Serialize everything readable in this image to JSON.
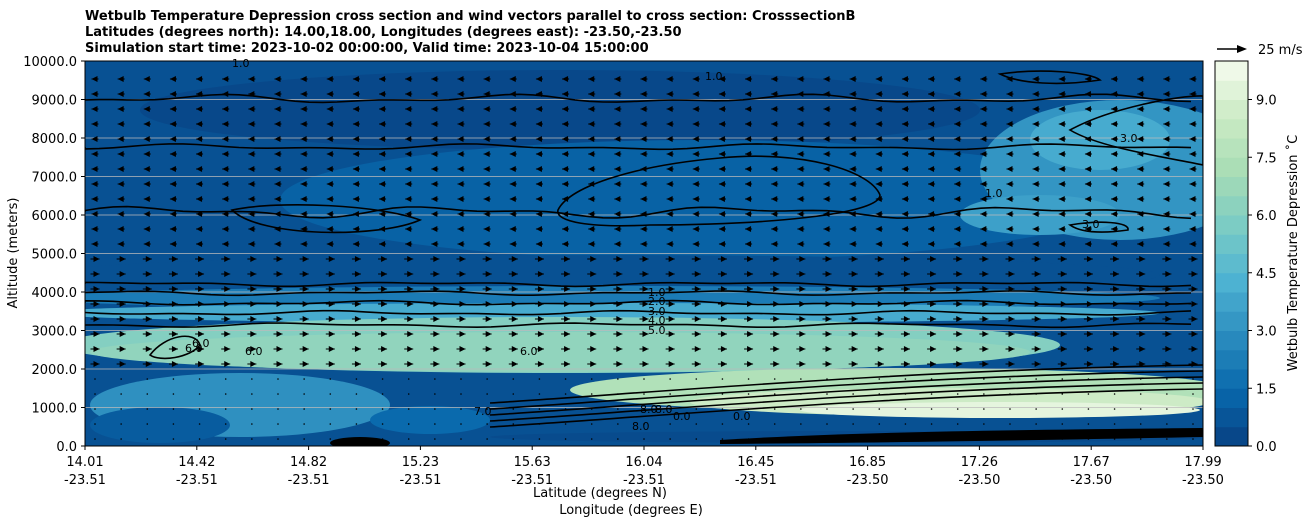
{
  "chart_data": {
    "type": "heatmap",
    "title_lines": [
      "Wetbulb Temperature Depression cross section and wind vectors parallel to cross section: CrosssectionB",
      "Latitudes (degrees north): 14.00,18.00, Longitudes (degrees east): -23.50,-23.50",
      "Simulation start time: 2023-10-02 00:00:00, Valid time: 2023-10-04 15:00:00"
    ],
    "xlabel_lines": [
      "Latitude (degrees N)",
      "Longitude (degrees E)"
    ],
    "ylabel": "Altitude (meters)",
    "colorbar_label": "Wetbulb Temperature Depression ˚C",
    "quiver_key_label": "25 m/s",
    "ylim": [
      0,
      10000
    ],
    "yticks": [
      "0.0",
      "1000.0",
      "2000.0",
      "3000.0",
      "4000.0",
      "5000.0",
      "6000.0",
      "7000.0",
      "8000.0",
      "9000.0",
      "10000.0"
    ],
    "xticks_lat": [
      "14.01",
      "14.42",
      "14.82",
      "15.23",
      "15.63",
      "16.04",
      "16.45",
      "16.85",
      "17.26",
      "17.67",
      "17.99"
    ],
    "xticks_lon": [
      "-23.51",
      "-23.51",
      "-23.51",
      "-23.51",
      "-23.51",
      "-23.51",
      "-23.51",
      "-23.50",
      "-23.50",
      "-23.50",
      "-23.50"
    ],
    "colorbar_range": [
      0,
      10
    ],
    "colorbar_ticks": [
      "0.0",
      "1.5",
      "3.0",
      "4.5",
      "6.0",
      "7.5",
      "9.0"
    ],
    "colormap": [
      "#084081",
      "#0868ac",
      "#2b8cbe",
      "#4eb3d3",
      "#7bccc4",
      "#a8ddb5",
      "#ccebc5",
      "#f7fcf0"
    ],
    "contour_labels": [
      "1.0",
      "2.0",
      "3.0",
      "4.0",
      "5.0",
      "6.0",
      "7.0",
      "8.0",
      "1.0",
      "1.0",
      "1.0",
      "3.0",
      "3.0",
      "6.0",
      "6.0",
      "6.0",
      "8.0",
      "8.0",
      "0.0",
      "0.0"
    ],
    "grid": "horizontal"
  }
}
